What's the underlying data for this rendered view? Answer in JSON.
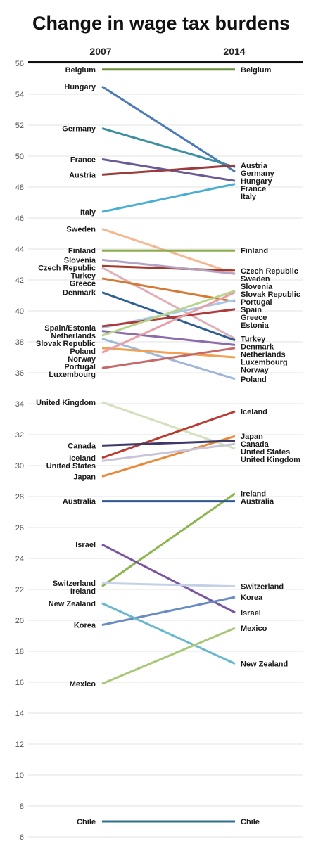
{
  "chart_data": {
    "type": "line",
    "title": "Change in wage tax burdens",
    "x": [
      "2007",
      "2014"
    ],
    "ylim": [
      6,
      56
    ],
    "yticks": [
      6,
      8,
      10,
      12,
      14,
      16,
      18,
      20,
      22,
      24,
      26,
      28,
      30,
      32,
      34,
      36,
      38,
      40,
      42,
      44,
      46,
      48,
      50,
      52,
      54,
      56
    ],
    "grid": true,
    "legend": "none",
    "series": [
      {
        "name": "Belgium",
        "values": [
          55.6,
          55.6
        ],
        "color": "#6b8e3a",
        "label2007": "Belgium",
        "label2014": "Belgium"
      },
      {
        "name": "Hungary",
        "values": [
          54.5,
          49.0
        ],
        "color": "#4a7bb5",
        "label2007": "Hungary",
        "label2014": "Hungary"
      },
      {
        "name": "Germany",
        "values": [
          51.8,
          49.3
        ],
        "color": "#3a8fa0",
        "label2007": "Germany",
        "label2014": "Germany"
      },
      {
        "name": "France",
        "values": [
          49.8,
          48.4
        ],
        "color": "#6c5a95",
        "label2007": "France",
        "label2014": "France"
      },
      {
        "name": "Austria",
        "values": [
          48.8,
          49.4
        ],
        "color": "#9c3b3b",
        "label2007": "Austria",
        "label2014": "Austria"
      },
      {
        "name": "Italy",
        "values": [
          46.4,
          48.2
        ],
        "color": "#4aaed0",
        "label2007": "Italy",
        "label2014": "Italy"
      },
      {
        "name": "Sweden",
        "values": [
          45.3,
          42.4
        ],
        "color": "#f4b791",
        "label2007": "Sweden",
        "label2014": "Sweden"
      },
      {
        "name": "Finland",
        "values": [
          43.9,
          43.9
        ],
        "color": "#8cac4a",
        "label2007": "Finland",
        "label2014": "Finland"
      },
      {
        "name": "Czech Republic",
        "values": [
          42.9,
          42.6
        ],
        "color": "#a33a2e",
        "label2007": "Czech Republic",
        "label2014": "Czech Republic"
      },
      {
        "name": "Slovenia",
        "values": [
          43.3,
          42.4
        ],
        "color": "#b3a3c7",
        "label2007": "Slovenia",
        "label2014": "Slovenia"
      },
      {
        "name": "Turkey",
        "values": [
          42.8,
          38.2
        ],
        "color": "#e0b0b8",
        "label2007": "Turkey",
        "label2014": "Turkey"
      },
      {
        "name": "Greece",
        "values": [
          42.1,
          40.6
        ],
        "color": "#d47a35",
        "label2007": "Greece",
        "label2014": "Greece"
      },
      {
        "name": "Denmark",
        "values": [
          41.2,
          38.1
        ],
        "color": "#2f5f94",
        "label2007": "Denmark",
        "label2014": "Denmark"
      },
      {
        "name": "Spain",
        "values": [
          38.9,
          40.7
        ],
        "color": "#a8c9e4",
        "label2007": "Spain/Estonia",
        "label2014": "Spain"
      },
      {
        "name": "Estonia",
        "values": [
          39.0,
          40.1
        ],
        "color": "#b03a3a",
        "label2007": "",
        "label2014": "Estonia"
      },
      {
        "name": "Netherlands",
        "values": [
          38.7,
          37.8
        ],
        "color": "#8a6bab",
        "label2007": "Netherlands",
        "label2014": "Netherlands"
      },
      {
        "name": "Slovak Republic",
        "values": [
          38.4,
          41.3
        ],
        "color": "#b8d48a",
        "label2007": "Slovak Republic",
        "label2014": "Slovak Republic"
      },
      {
        "name": "Poland",
        "values": [
          38.2,
          35.6
        ],
        "color": "#9fb7d9",
        "label2007": "Poland",
        "label2014": "Poland"
      },
      {
        "name": "Norway",
        "values": [
          37.6,
          37.0
        ],
        "color": "#f0a050",
        "label2007": "Norway",
        "label2014": "Norway"
      },
      {
        "name": "Portugal",
        "values": [
          37.3,
          41.2
        ],
        "color": "#e8a0a8",
        "label2007": "Portugal",
        "label2014": "Portugal"
      },
      {
        "name": "Luxembourg",
        "values": [
          36.3,
          37.6
        ],
        "color": "#c46868",
        "label2007": "Luxembourg",
        "label2014": "Luxembourg"
      },
      {
        "name": "United Kingdom",
        "values": [
          34.1,
          31.1
        ],
        "color": "#d2e0bb",
        "label2007": "United Kingdom",
        "label2014": "United Kingdom"
      },
      {
        "name": "Iceland",
        "values": [
          30.5,
          33.5
        ],
        "color": "#b83a30",
        "label2007": "Iceland",
        "label2014": "Iceland"
      },
      {
        "name": "Japan",
        "values": [
          29.3,
          31.9
        ],
        "color": "#e8893a",
        "label2007": "Japan",
        "label2014": "Japan"
      },
      {
        "name": "United States",
        "values": [
          30.3,
          31.4
        ],
        "color": "#c9c3dc",
        "label2007": "United States",
        "label2014": "United States"
      },
      {
        "name": "Canada",
        "values": [
          31.3,
          31.6
        ],
        "color": "#3d3a6b",
        "label2007": "Canada",
        "label2014": "Canada"
      },
      {
        "name": "Ireland",
        "values": [
          22.2,
          28.2
        ],
        "color": "#8db54f",
        "label2007": "Ireland",
        "label2014": "Ireland"
      },
      {
        "name": "Australia",
        "values": [
          27.7,
          27.7
        ],
        "color": "#2e5790",
        "label2007": "Australia",
        "label2014": "Australia"
      },
      {
        "name": "Israel",
        "values": [
          24.9,
          20.5
        ],
        "color": "#7a55a0",
        "label2007": "Israel",
        "label2014": "Israel"
      },
      {
        "name": "Switzerland",
        "values": [
          22.4,
          22.2
        ],
        "color": "#c5cfe8",
        "label2007": "Switzerland",
        "label2014": "Switzerland"
      },
      {
        "name": "Korea",
        "values": [
          19.7,
          21.5
        ],
        "color": "#6a8cc4",
        "label2007": "Korea",
        "label2014": "Korea"
      },
      {
        "name": "New Zealand",
        "values": [
          21.1,
          17.2
        ],
        "color": "#6ab8d0",
        "label2007": "New Zealand",
        "label2014": "New Zealand"
      },
      {
        "name": "Mexico",
        "values": [
          15.9,
          19.5
        ],
        "color": "#a8c878",
        "label2007": "Mexico",
        "label2014": "Mexico"
      },
      {
        "name": "Chile",
        "values": [
          7.0,
          7.0
        ],
        "color": "#2f6f8f",
        "label2007": "Chile",
        "label2014": "Chile"
      }
    ]
  }
}
